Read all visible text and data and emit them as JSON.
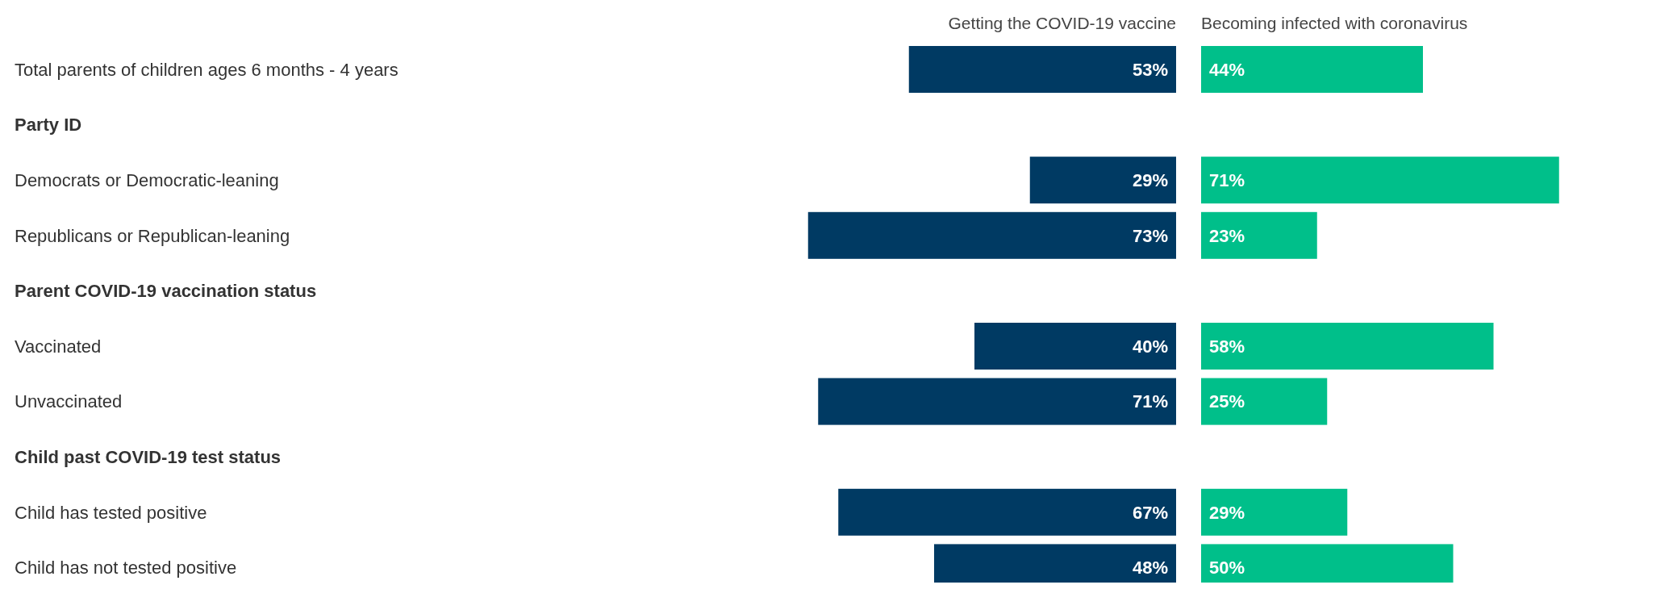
{
  "chart_data": [
    {
      "type": "bar",
      "orientation": "horizontal",
      "title": "Getting the COVID-19 vaccine",
      "categories": [
        "Total parents of children ages 6 months - 4 years",
        "Party ID",
        "Democrats or Democratic-leaning",
        "Republicans or Republican-leaning",
        "Parent COVID-19 vaccination status",
        "Vaccinated",
        "Unvaccinated",
        "Child past COVID-19 test status",
        "Child has tested positive",
        "Child has not tested positive"
      ],
      "values": [
        53,
        null,
        29,
        73,
        null,
        40,
        71,
        null,
        67,
        48
      ],
      "value_labels": [
        "53%",
        null,
        "29%",
        "73%",
        null,
        "40%",
        "71%",
        null,
        "67%",
        "48%"
      ],
      "color": "#003a63"
    },
    {
      "type": "bar",
      "orientation": "horizontal",
      "title": "Becoming infected with coronavirus",
      "values": [
        44,
        null,
        71,
        23,
        null,
        58,
        25,
        null,
        29,
        50
      ],
      "value_labels": [
        "44%",
        null,
        "71%",
        "23%",
        null,
        "58%",
        "25%",
        null,
        "29%",
        "50%"
      ],
      "color": "#00bf8a"
    }
  ]
}
